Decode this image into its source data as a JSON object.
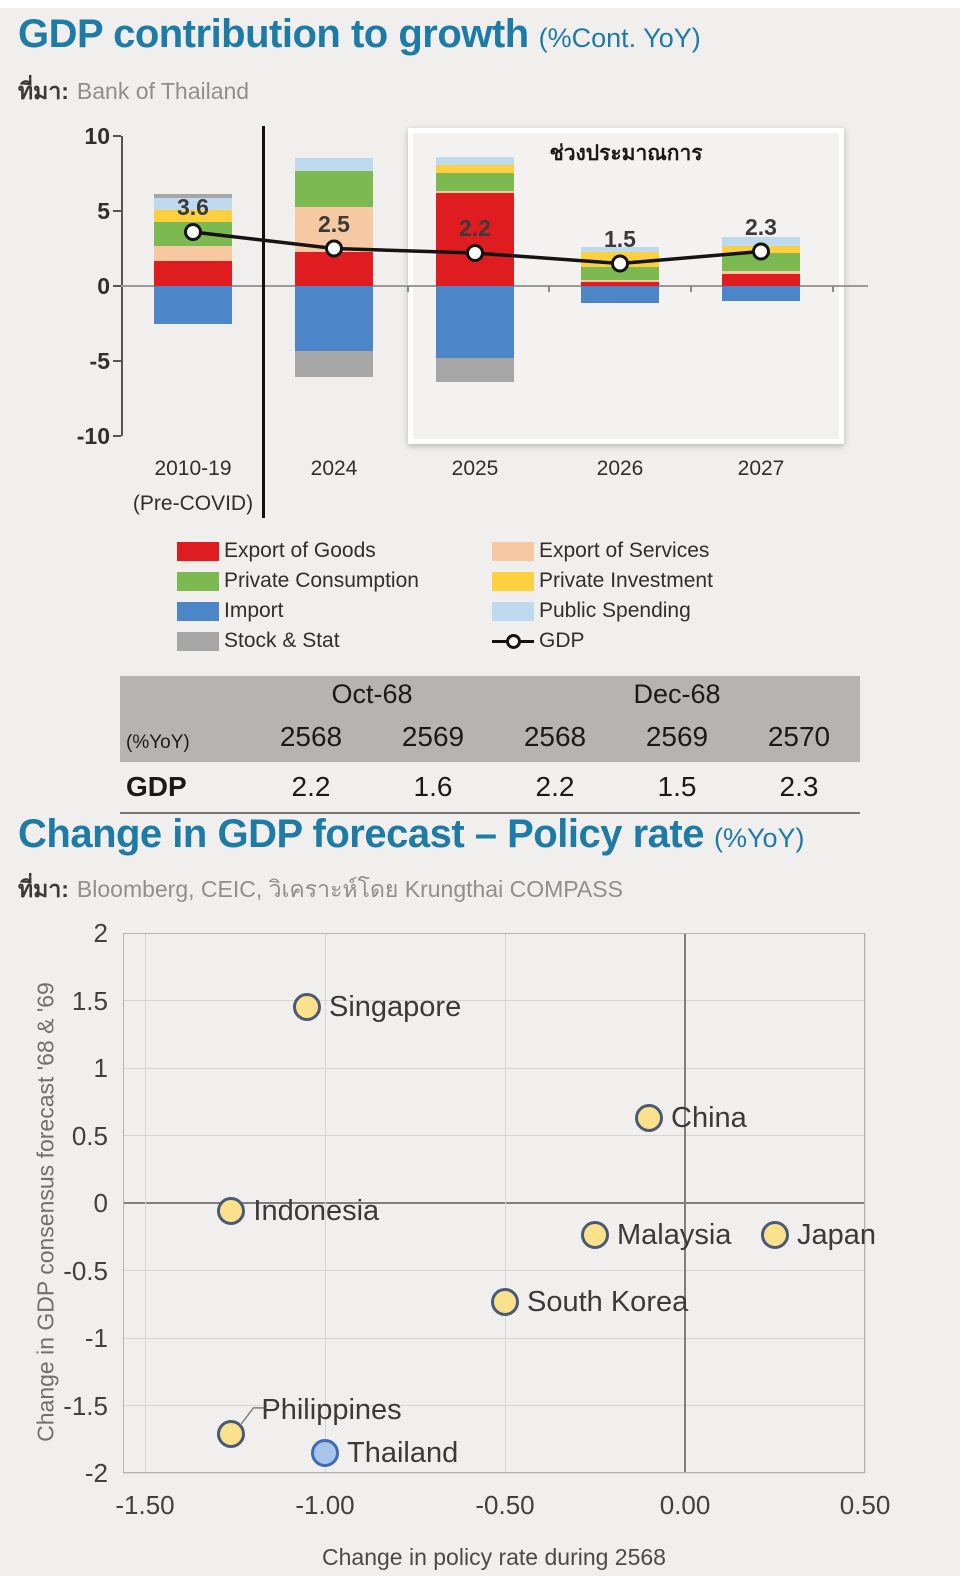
{
  "section1": {
    "title": "GDP contribution to growth",
    "title_suffix": "(%Cont. YoY)",
    "source_label": "ที่มา:",
    "source_text": "Bank of Thailand"
  },
  "section2": {
    "title": "Change in GDP forecast – Policy rate",
    "title_suffix": "(%YoY)",
    "source_label": "ที่มา:",
    "source_text": "Bloomberg, CEIC, วิเคราะห์โดย Krungthai COMPASS"
  },
  "colors": {
    "export_goods": "#df1d20",
    "export_services": "#f7c9a3",
    "private_consumption": "#7cb950",
    "private_investment": "#fdd040",
    "import": "#4c86c8",
    "public_spending": "#bfd9ef",
    "stock_stat": "#a6a6a6",
    "gdp_line": "#141414",
    "title_accent": "#1e7ba6",
    "scatter_marker_fill": "#fbe18c",
    "scatter_marker_stroke": "#4b5a74",
    "scatter_highlight_fill": "#a9c4ea",
    "scatter_highlight_stroke": "#3f6ab5"
  },
  "legend": {
    "columns": [
      [
        {
          "key": "export_goods",
          "label": "Export of Goods"
        },
        {
          "key": "private_consumption",
          "label": "Private Consumption"
        },
        {
          "key": "import",
          "label": "Import"
        },
        {
          "key": "stock_stat",
          "label": "Stock & Stat"
        }
      ],
      [
        {
          "key": "export_services",
          "label": "Export of Services"
        },
        {
          "key": "private_investment",
          "label": "Private Investment"
        },
        {
          "key": "public_spending",
          "label": "Public Spending"
        },
        {
          "key": "gdp_line",
          "label": "GDP",
          "type": "line"
        }
      ]
    ]
  },
  "table": {
    "corner_label": "(%YoY)",
    "group_headers": [
      {
        "label": "Oct-68",
        "span": 2
      },
      {
        "label": "Dec-68",
        "span": 3
      }
    ],
    "col_headers": [
      "2568",
      "2569",
      "2568",
      "2569",
      "2570"
    ],
    "rows": [
      {
        "label": "GDP",
        "values": [
          "2.2",
          "1.6",
          "2.2",
          "1.5",
          "2.3"
        ]
      }
    ]
  },
  "chart_data": [
    {
      "type": "bar",
      "title": "GDP contribution to growth",
      "unit": "%Cont. YoY",
      "stacked": true,
      "ylim": [
        -10,
        10
      ],
      "yticks": [
        "10",
        "5",
        "0",
        "-5",
        "-10"
      ],
      "ytick_values": [
        10,
        5,
        0,
        -5,
        -10
      ],
      "grid": false,
      "forecast_box_label": "ช่วงประมาณการ",
      "forecast_years": [
        "2025",
        "2026",
        "2027"
      ],
      "categories": [
        "2010-19",
        "2024",
        "2025",
        "2026",
        "2027"
      ],
      "category_sublabels": [
        "(Pre-COVID)",
        "",
        "",
        "",
        ""
      ],
      "gdp_line_values": [
        3.6,
        2.5,
        2.2,
        1.5,
        2.3
      ],
      "gdp_line_labels": [
        "3.6",
        "2.5",
        "2.2",
        "1.5",
        "2.3"
      ],
      "bars": [
        {
          "category": "2010-19",
          "segments_up": [
            [
              "export_goods",
              1.7
            ],
            [
              "export_services",
              1.0
            ],
            [
              "private_consumption",
              1.6
            ],
            [
              "private_investment",
              0.75
            ],
            [
              "public_spending",
              0.85
            ],
            [
              "stock_stat",
              0.25
            ]
          ],
          "segments_down": [
            [
              "import",
              -2.5
            ]
          ]
        },
        {
          "category": "2024",
          "segments_up": [
            [
              "export_goods",
              2.3
            ],
            [
              "export_services",
              3.0
            ],
            [
              "private_consumption",
              2.4
            ],
            [
              "public_spending",
              0.85
            ]
          ],
          "segments_down": [
            [
              "import",
              -4.35
            ],
            [
              "stock_stat",
              -1.7
            ]
          ]
        },
        {
          "category": "2025",
          "segments_up": [
            [
              "export_goods",
              6.2
            ],
            [
              "export_services",
              0.15
            ],
            [
              "private_consumption",
              1.2
            ],
            [
              "private_investment",
              0.5
            ],
            [
              "public_spending",
              0.55
            ]
          ],
          "segments_down": [
            [
              "import",
              -4.8
            ],
            [
              "stock_stat",
              -1.6
            ]
          ]
        },
        {
          "category": "2026",
          "segments_up": [
            [
              "export_goods",
              0.3
            ],
            [
              "export_services",
              0.1
            ],
            [
              "private_consumption",
              0.85
            ],
            [
              "private_investment",
              1.05
            ],
            [
              "public_spending",
              0.3
            ]
          ],
          "segments_down": [
            [
              "import",
              -1.1
            ]
          ]
        },
        {
          "category": "2027",
          "segments_up": [
            [
              "export_goods",
              0.8
            ],
            [
              "export_services",
              0.2
            ],
            [
              "private_consumption",
              1.2
            ],
            [
              "private_investment",
              0.45
            ],
            [
              "public_spending",
              0.65
            ]
          ],
          "segments_down": [
            [
              "import",
              -1.0
            ]
          ]
        }
      ]
    },
    {
      "type": "scatter",
      "xlabel": "Change in policy rate during 2568",
      "ylabel": "Change in GDP consensus forecast '68 & '69",
      "xlim": [
        -1.56,
        0.5
      ],
      "ylim": [
        -2,
        2
      ],
      "xticks": [
        "-1.50",
        "-1.00",
        "-0.50",
        "0.00",
        "0.50"
      ],
      "xtick_values": [
        -1.5,
        -1.0,
        -0.5,
        0.0,
        0.5
      ],
      "yticks": [
        "2",
        "1.5",
        "1",
        "0.5",
        "0",
        "-0.5",
        "-1",
        "-1.5",
        "-2"
      ],
      "ytick_values": [
        2,
        1.5,
        1,
        0.5,
        0,
        -0.5,
        -1,
        -1.5,
        -2
      ],
      "grid": true,
      "points": [
        {
          "label": "Singapore",
          "x": -1.05,
          "y": 1.45
        },
        {
          "label": "China",
          "x": -0.1,
          "y": 0.63
        },
        {
          "label": "Indonesia",
          "x": -1.26,
          "y": -0.06
        },
        {
          "label": "Malaysia",
          "x": -0.25,
          "y": -0.24
        },
        {
          "label": "Japan",
          "x": 0.25,
          "y": -0.24
        },
        {
          "label": "South Korea",
          "x": -0.5,
          "y": -0.73
        },
        {
          "label": "Philippines",
          "x": -1.26,
          "y": -1.71,
          "label_position": "above"
        },
        {
          "label": "Thailand",
          "x": -1.0,
          "y": -1.85,
          "highlight": true
        }
      ]
    }
  ]
}
